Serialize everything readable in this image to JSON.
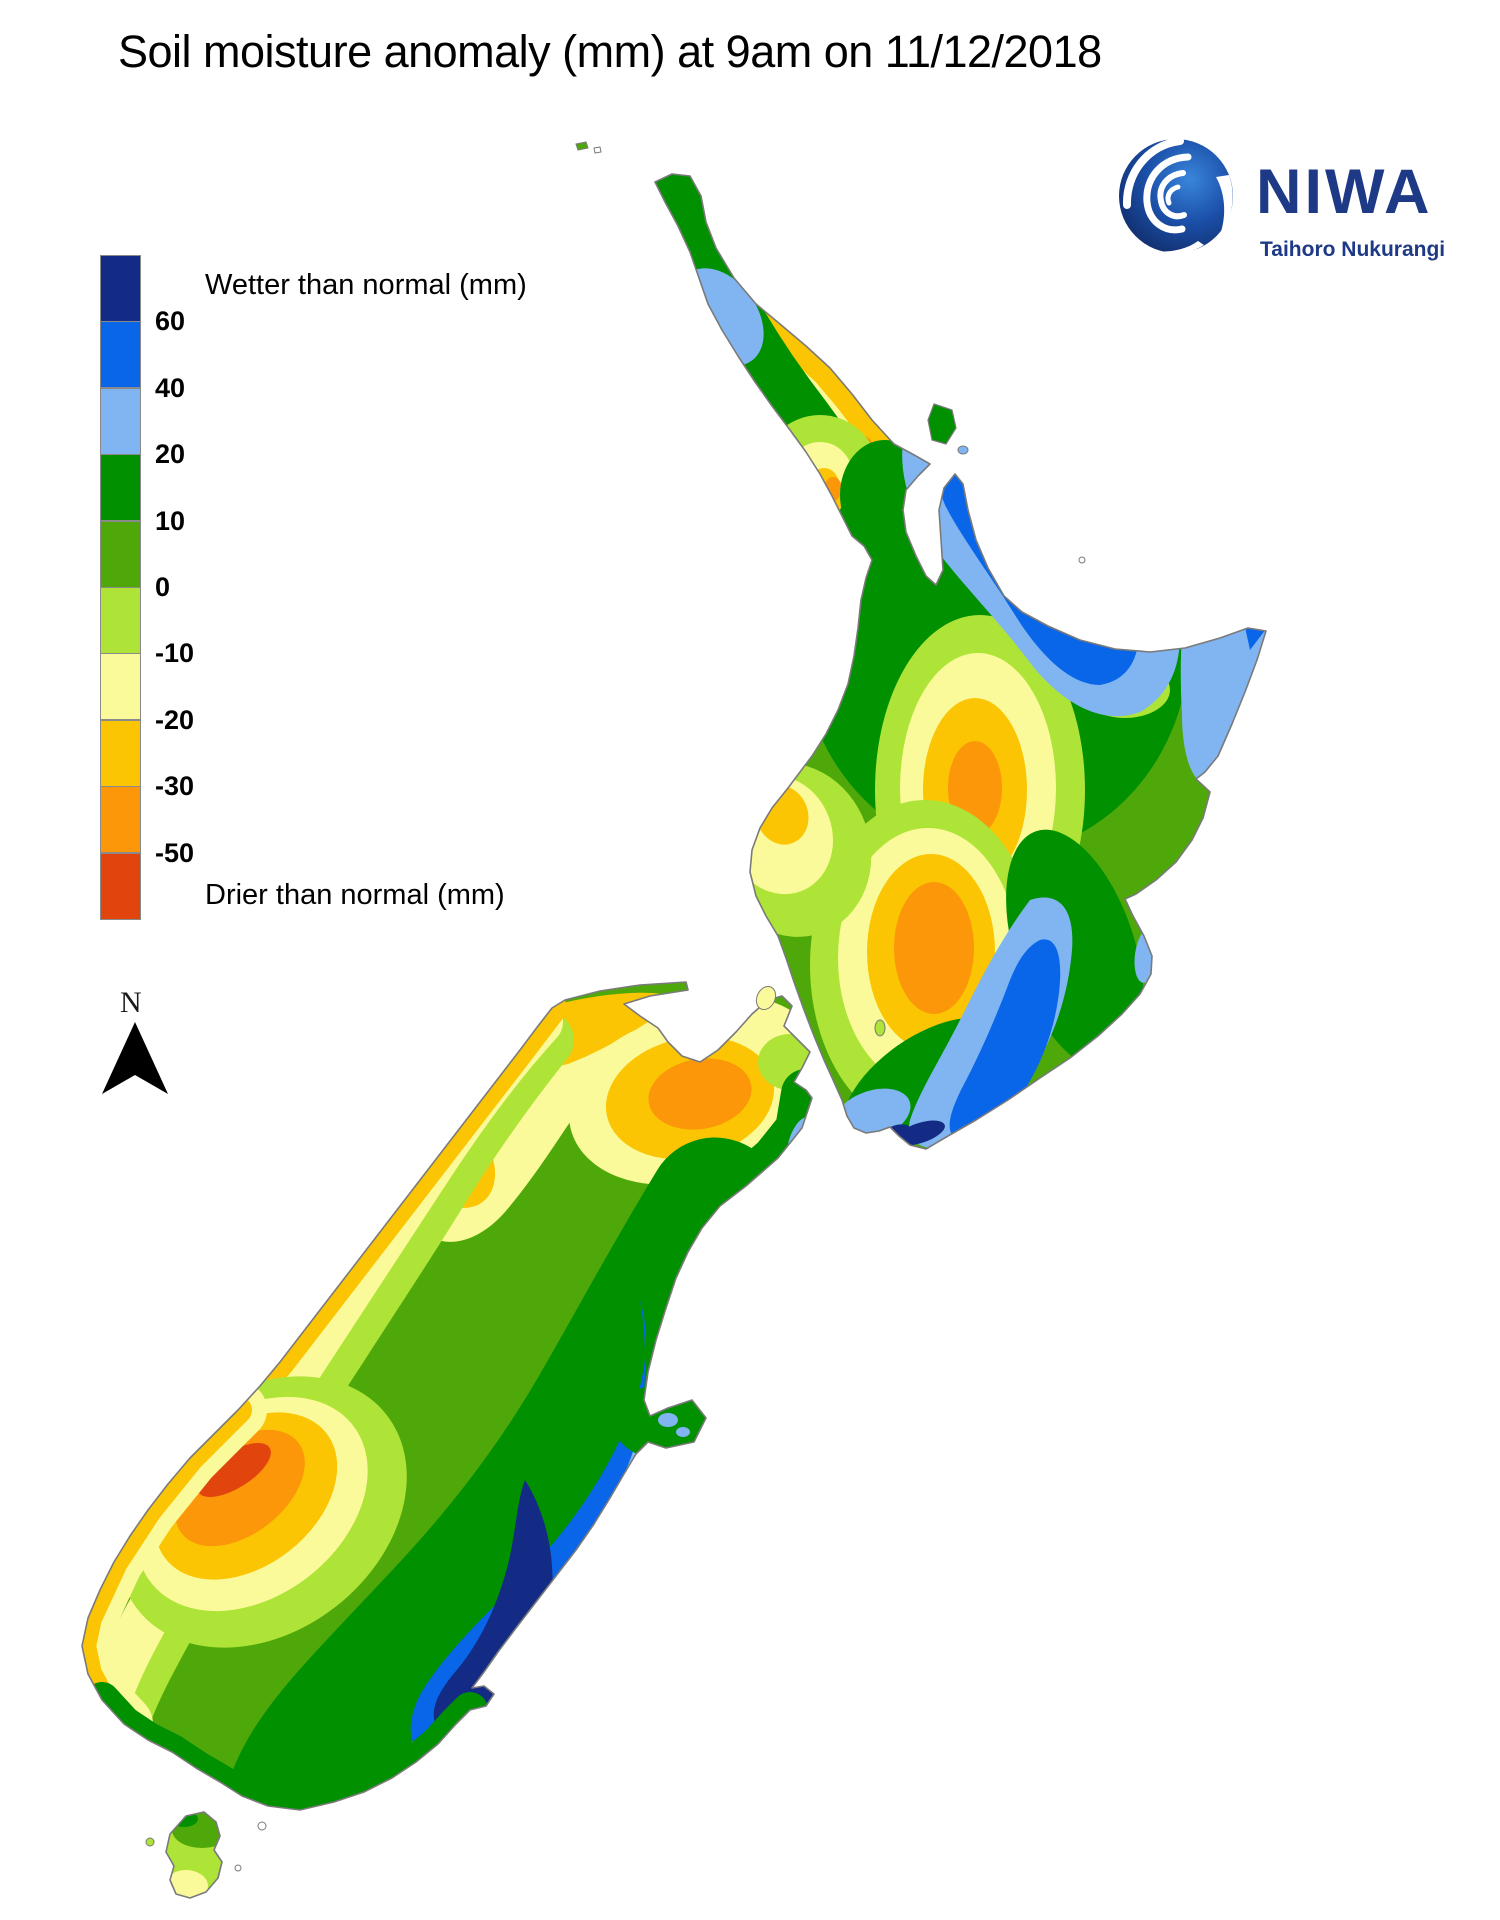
{
  "title": "Soil moisture anomaly (mm) at 9am on 11/12/2018",
  "legend": {
    "wetter_label": "Wetter than normal (mm)",
    "drier_label": "Drier than normal (mm)",
    "tick_labels": [
      "60",
      "40",
      "20",
      "10",
      "0",
      "-10",
      "-20",
      "-30",
      "-50"
    ],
    "band_colors": [
      "#132B84",
      "#0A66E8",
      "#80B5F2",
      "#009000",
      "#4FA80A",
      "#AEE337",
      "#FBFA9B",
      "#FBC503",
      "#FB9708",
      "#E2440E"
    ]
  },
  "colors": {
    "navy": "#132B84",
    "blue": "#0A66E8",
    "lightblue": "#80B5F2",
    "darkgreen": "#009000",
    "green": "#4FA80A",
    "yellowgreen": "#AEE337",
    "paleyellow": "#FBFA9B",
    "gold": "#FBC503",
    "orange": "#FB9708",
    "redorange": "#E2440E",
    "outline": "#7A7A7A"
  },
  "compass": {
    "label": "N"
  },
  "logo": {
    "wordmark": "NIWA",
    "tagline": "Taihoro Nukurangi",
    "color": "#1E3A87"
  }
}
